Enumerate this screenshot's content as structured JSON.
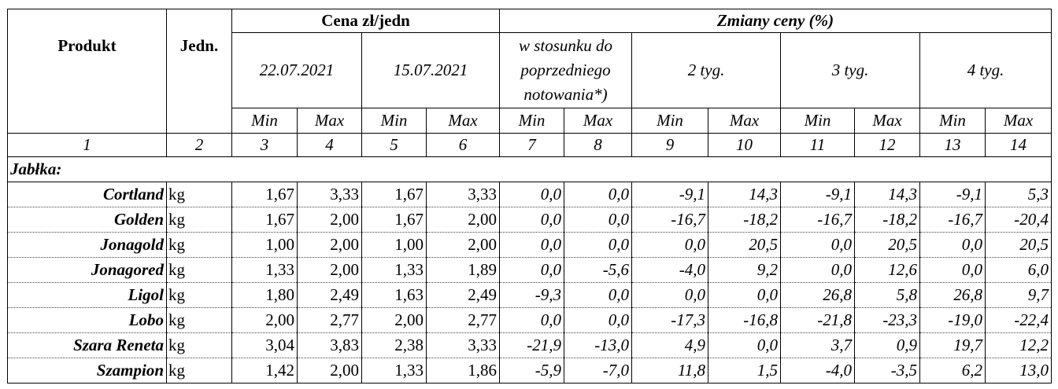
{
  "header": {
    "produkt": "Produkt",
    "jedn": "Jedn.",
    "cena": "Cena zł/jedn",
    "zmiany": "Zmiany ceny (%)",
    "date1": "22.07.2021",
    "date2": "15.07.2021",
    "poprzedniego": "w stosunku do poprzedniego notowania*)",
    "tyg2": "2 tyg.",
    "tyg3": "3 tyg.",
    "tyg4": "4 tyg.",
    "min": "Min",
    "max": "Max"
  },
  "column_numbers": [
    "1",
    "2",
    "3",
    "4",
    "5",
    "6",
    "7",
    "8",
    "9",
    "10",
    "11",
    "12",
    "13",
    "14"
  ],
  "section": "Jabłka:",
  "rows": [
    {
      "name": "Cortland",
      "unit": "kg",
      "values": [
        "1,67",
        "3,33",
        "1,67",
        "3,33",
        "0,0",
        "0,0",
        "-9,1",
        "14,3",
        "-9,1",
        "14,3",
        "-9,1",
        "5,3"
      ]
    },
    {
      "name": "Golden",
      "unit": "kg",
      "values": [
        "1,67",
        "2,00",
        "1,67",
        "2,00",
        "0,0",
        "0,0",
        "-16,7",
        "-18,2",
        "-16,7",
        "-18,2",
        "-16,7",
        "-20,4"
      ]
    },
    {
      "name": "Jonagold",
      "unit": "kg",
      "values": [
        "1,00",
        "2,00",
        "1,00",
        "2,00",
        "0,0",
        "0,0",
        "0,0",
        "20,5",
        "0,0",
        "20,5",
        "0,0",
        "20,5"
      ]
    },
    {
      "name": "Jonagored",
      "unit": "kg",
      "values": [
        "1,33",
        "2,00",
        "1,33",
        "1,89",
        "0,0",
        "-5,6",
        "-4,0",
        "9,2",
        "0,0",
        "12,6",
        "0,0",
        "6,0"
      ]
    },
    {
      "name": "Ligol",
      "unit": "kg",
      "values": [
        "1,80",
        "2,49",
        "1,63",
        "2,49",
        "-9,3",
        "0,0",
        "0,0",
        "0,0",
        "26,8",
        "5,8",
        "26,8",
        "9,7"
      ]
    },
    {
      "name": "Lobo",
      "unit": "kg",
      "values": [
        "2,00",
        "2,77",
        "2,00",
        "2,77",
        "0,0",
        "0,0",
        "-17,3",
        "-16,8",
        "-21,8",
        "-23,3",
        "-19,0",
        "-22,4"
      ]
    },
    {
      "name": "Szara Reneta",
      "unit": "kg",
      "values": [
        "3,04",
        "3,83",
        "2,38",
        "3,33",
        "-21,9",
        "-13,0",
        "4,9",
        "0,0",
        "3,7",
        "0,9",
        "19,7",
        "12,2"
      ]
    },
    {
      "name": "Szampion",
      "unit": "kg",
      "values": [
        "1,42",
        "2,00",
        "1,33",
        "1,86",
        "-5,9",
        "-7,0",
        "11,8",
        "1,5",
        "-4,0",
        "-3,5",
        "6,2",
        "13,0"
      ]
    }
  ]
}
